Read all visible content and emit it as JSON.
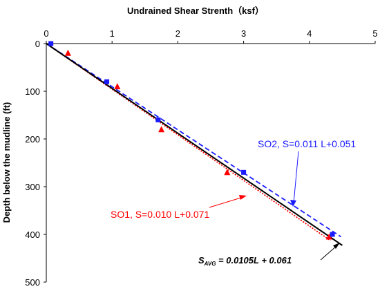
{
  "chart_data": {
    "type": "scatter",
    "title": "Undrained Shear Strenth（ksf）",
    "xlabel": "",
    "ylabel": "Depth below the mudline (ft)",
    "xlim": [
      0,
      5
    ],
    "ylim": [
      0,
      500
    ],
    "y_inverted": true,
    "x_axis_position": "top",
    "x_ticks": [
      "0",
      "1",
      "2",
      "3",
      "4",
      "5"
    ],
    "y_ticks": [
      "0",
      "100",
      "200",
      "300",
      "400",
      "500"
    ],
    "grid": false,
    "series": [
      {
        "name": "SO1",
        "marker": "triangle",
        "color": "#ff0000",
        "points": [
          [
            0.33,
            20
          ],
          [
            1.08,
            90
          ],
          [
            1.75,
            180
          ],
          [
            2.75,
            270
          ],
          [
            4.3,
            405
          ]
        ]
      },
      {
        "name": "SO2",
        "marker": "square",
        "color": "#1a1aff",
        "points": [
          [
            0.07,
            0
          ],
          [
            0.92,
            80
          ],
          [
            1.7,
            160
          ],
          [
            3.0,
            270
          ],
          [
            4.35,
            400
          ]
        ]
      }
    ],
    "fit_lines": [
      {
        "series": "SO1",
        "style": "dotted",
        "color": "#ff0000",
        "x": [
          0.0,
          4.32
        ],
        "y": [
          0,
          413
        ]
      },
      {
        "series": "SO2",
        "style": "dashed",
        "color": "#1a1aff",
        "x": [
          0.0,
          4.48
        ],
        "y": [
          0,
          405
        ]
      },
      {
        "series": "AVG",
        "style": "solid",
        "color": "#000000",
        "x": [
          0.0,
          4.5
        ],
        "y": [
          0,
          423
        ]
      }
    ],
    "annotations": {
      "so1": "SO1, S=0.010 L+0.071",
      "so2": "SO2, S=0.011 L+0.051",
      "avg_prefix": "S",
      "avg_sub": "AVG",
      "avg_eq": " = 0.0105L + 0.061"
    },
    "annotation_colors": {
      "so1": "#ff0000",
      "so2": "#1a1aff",
      "avg": "#000000"
    }
  }
}
